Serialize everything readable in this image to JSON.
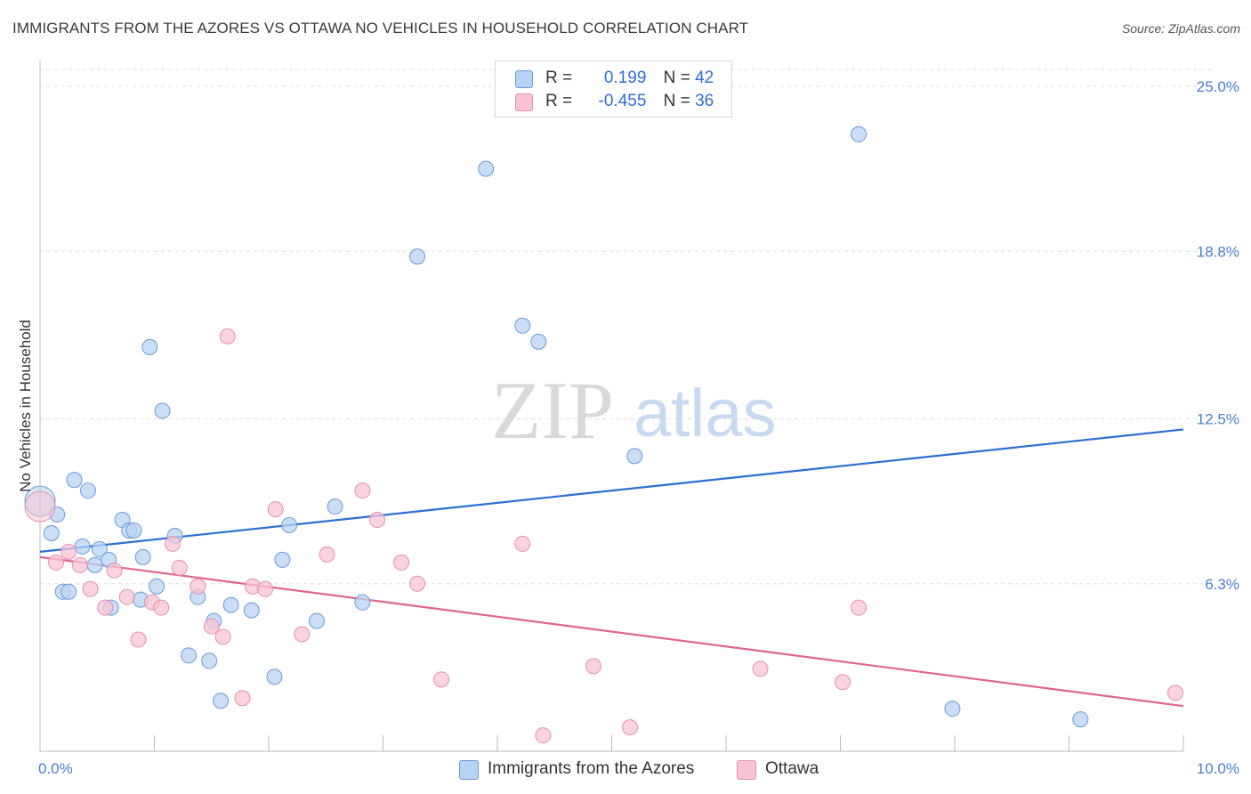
{
  "title": "IMMIGRANTS FROM THE AZORES VS OTTAWA NO VEHICLES IN HOUSEHOLD CORRELATION CHART",
  "source": "Source: ZipAtlas.com",
  "watermark": {
    "part1": "ZIP",
    "part2": "atlas"
  },
  "legend": {
    "rows": [
      {
        "r_label": "R =",
        "r_value": "0.199",
        "n_label": "N =",
        "n_value": "42"
      },
      {
        "r_label": "R =",
        "r_value": "-0.455",
        "n_label": "N =",
        "n_value": "36"
      }
    ]
  },
  "colors": {
    "blue_fill": "#b8d3f3",
    "blue_stroke": "#6a9ad8",
    "blue_line": "#2a6fd4",
    "pink_fill": "#f8c4d4",
    "pink_stroke": "#e590ad",
    "pink_line": "#e2648f",
    "axis_text": "#4a7fd0",
    "grid": "#dddddd"
  },
  "chart_data": {
    "type": "scatter",
    "title": "IMMIGRANTS FROM THE AZORES VS OTTAWA NO VEHICLES IN HOUSEHOLD CORRELATION CHART",
    "xlabel": "",
    "ylabel": "No Vehicles in Household",
    "xlim": [
      0,
      10
    ],
    "ylim": [
      0,
      25.0
    ],
    "x_tick_labels": [
      "0.0%",
      "10.0%"
    ],
    "y_ticks": [
      6.3,
      12.5,
      18.8,
      25.0
    ],
    "y_tick_labels": [
      "6.3%",
      "12.5%",
      "18.8%",
      "25.0%"
    ],
    "grid": true,
    "legend_position": "top-center",
    "series": [
      {
        "name": "Immigrants from the Azores",
        "color": "#6a9ad8",
        "r": 0.199,
        "n": 42,
        "trend": [
          [
            0,
            7.5
          ],
          [
            10,
            12.1
          ]
        ],
        "points": [
          [
            0.0,
            9.4
          ],
          [
            0.1,
            8.2
          ],
          [
            0.15,
            8.9
          ],
          [
            0.2,
            6.0
          ],
          [
            0.25,
            6.0
          ],
          [
            0.3,
            10.2
          ],
          [
            0.37,
            7.7
          ],
          [
            0.42,
            9.8
          ],
          [
            0.48,
            7.0
          ],
          [
            0.52,
            7.6
          ],
          [
            0.6,
            7.2
          ],
          [
            0.62,
            5.4
          ],
          [
            0.72,
            8.7
          ],
          [
            0.78,
            8.3
          ],
          [
            0.82,
            8.3
          ],
          [
            0.88,
            5.7
          ],
          [
            0.9,
            7.3
          ],
          [
            0.96,
            15.2
          ],
          [
            1.02,
            6.2
          ],
          [
            1.07,
            12.8
          ],
          [
            1.18,
            8.1
          ],
          [
            1.3,
            3.6
          ],
          [
            1.38,
            5.8
          ],
          [
            1.48,
            3.4
          ],
          [
            1.52,
            4.9
          ],
          [
            1.58,
            1.9
          ],
          [
            1.67,
            5.5
          ],
          [
            1.85,
            5.3
          ],
          [
            2.05,
            2.8
          ],
          [
            2.12,
            7.2
          ],
          [
            2.18,
            8.5
          ],
          [
            2.42,
            4.9
          ],
          [
            2.58,
            9.2
          ],
          [
            2.82,
            5.6
          ],
          [
            3.3,
            18.6
          ],
          [
            3.9,
            21.9
          ],
          [
            4.22,
            16.0
          ],
          [
            4.36,
            15.4
          ],
          [
            5.2,
            11.1
          ],
          [
            7.16,
            23.2
          ],
          [
            7.98,
            1.6
          ],
          [
            9.1,
            1.2
          ]
        ]
      },
      {
        "name": "Ottawa",
        "color": "#e590ad",
        "r": -0.455,
        "n": 36,
        "trend": [
          [
            0,
            7.3
          ],
          [
            10,
            1.7
          ]
        ],
        "points": [
          [
            0.0,
            9.2
          ],
          [
            0.14,
            7.1
          ],
          [
            0.25,
            7.5
          ],
          [
            0.35,
            7.0
          ],
          [
            0.44,
            6.1
          ],
          [
            0.57,
            5.4
          ],
          [
            0.65,
            6.8
          ],
          [
            0.76,
            5.8
          ],
          [
            0.86,
            4.2
          ],
          [
            0.98,
            5.6
          ],
          [
            1.06,
            5.4
          ],
          [
            1.16,
            7.8
          ],
          [
            1.22,
            6.9
          ],
          [
            1.38,
            6.2
          ],
          [
            1.5,
            4.7
          ],
          [
            1.6,
            4.3
          ],
          [
            1.64,
            15.6
          ],
          [
            1.77,
            2.0
          ],
          [
            1.86,
            6.2
          ],
          [
            1.97,
            6.1
          ],
          [
            2.06,
            9.1
          ],
          [
            2.29,
            4.4
          ],
          [
            2.51,
            7.4
          ],
          [
            2.82,
            9.8
          ],
          [
            2.95,
            8.7
          ],
          [
            3.16,
            7.1
          ],
          [
            3.3,
            6.3
          ],
          [
            3.51,
            2.7
          ],
          [
            4.22,
            7.8
          ],
          [
            4.4,
            0.6
          ],
          [
            4.84,
            3.2
          ],
          [
            5.16,
            0.9
          ],
          [
            6.3,
            3.1
          ],
          [
            7.02,
            2.6
          ],
          [
            7.16,
            5.4
          ],
          [
            9.93,
            2.2
          ]
        ]
      }
    ]
  }
}
